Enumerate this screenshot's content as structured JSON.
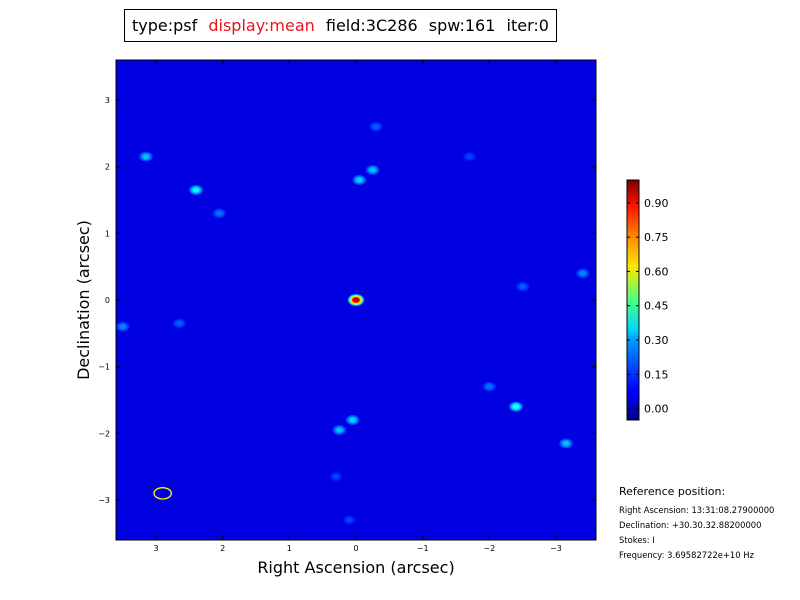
{
  "header": {
    "type": "type:psf",
    "display": "display:mean",
    "field": "field:3C286",
    "spw": "spw:161",
    "iter": "iter:0",
    "display_color": "#e8141c"
  },
  "reference": {
    "title": "Reference position:",
    "ra": "Right Ascension: 13:31:08.27900000",
    "dec": "Declination: +30.30.32.88200000",
    "stokes": "Stokes: I",
    "freq": "Frequency: 3.69582722e+10 Hz"
  },
  "chart_data": {
    "type": "heatmap",
    "title": "",
    "xlabel": "Right Ascension (arcsec)",
    "ylabel": "Declination (arcsec)",
    "xlim": [
      3.6,
      -3.6
    ],
    "ylim": [
      -3.6,
      3.6
    ],
    "x_ticks": [
      3,
      2,
      1,
      0,
      -1,
      -2,
      -3
    ],
    "x_tick_labels": [
      "3",
      "2",
      "1",
      "0",
      "−1",
      "−2",
      "−3"
    ],
    "y_ticks": [
      3,
      2,
      1,
      0,
      -1,
      -2,
      -3
    ],
    "y_tick_labels": [
      "3",
      "2",
      "1",
      "0",
      "−1",
      "−2",
      "−3"
    ],
    "colorbar": {
      "colormap": "jet",
      "vmin": -0.05,
      "vmax": 1.0,
      "ticks": [
        0.9,
        0.75,
        0.6,
        0.45,
        0.3,
        0.15,
        0.0
      ],
      "tick_labels": [
        "0.90",
        "0.75",
        "0.60",
        "0.45",
        "0.30",
        "0.15",
        "0.00"
      ]
    },
    "background_level": 0.05,
    "peak": {
      "x": 0.0,
      "y": 0.0,
      "value": 1.0
    },
    "sidelobes": [
      {
        "x": 0.0,
        "y": 0.0,
        "value": 0.95
      },
      {
        "x": 2.4,
        "y": 1.65,
        "value": 0.35
      },
      {
        "x": 3.15,
        "y": 2.15,
        "value": 0.28
      },
      {
        "x": 2.05,
        "y": 1.3,
        "value": 0.2
      },
      {
        "x": -0.05,
        "y": 1.8,
        "value": 0.3
      },
      {
        "x": -0.25,
        "y": 1.95,
        "value": 0.28
      },
      {
        "x": -2.4,
        "y": -1.6,
        "value": 0.38
      },
      {
        "x": -3.15,
        "y": -2.15,
        "value": 0.28
      },
      {
        "x": -2.0,
        "y": -1.3,
        "value": 0.2
      },
      {
        "x": 0.05,
        "y": -1.8,
        "value": 0.3
      },
      {
        "x": 0.25,
        "y": -1.95,
        "value": 0.28
      },
      {
        "x": -3.4,
        "y": 0.4,
        "value": 0.22
      },
      {
        "x": 3.5,
        "y": -0.4,
        "value": 0.22
      },
      {
        "x": 2.65,
        "y": -0.35,
        "value": 0.18
      },
      {
        "x": -2.5,
        "y": 0.2,
        "value": 0.18
      },
      {
        "x": -1.7,
        "y": 2.15,
        "value": 0.15
      },
      {
        "x": -0.3,
        "y": 2.6,
        "value": 0.18
      },
      {
        "x": 0.3,
        "y": -2.65,
        "value": 0.15
      },
      {
        "x": 0.1,
        "y": -3.3,
        "value": 0.15
      }
    ],
    "beam": {
      "x": 2.9,
      "y": -2.9,
      "major": 0.26,
      "minor": 0.17,
      "color": "#ffff00"
    }
  }
}
